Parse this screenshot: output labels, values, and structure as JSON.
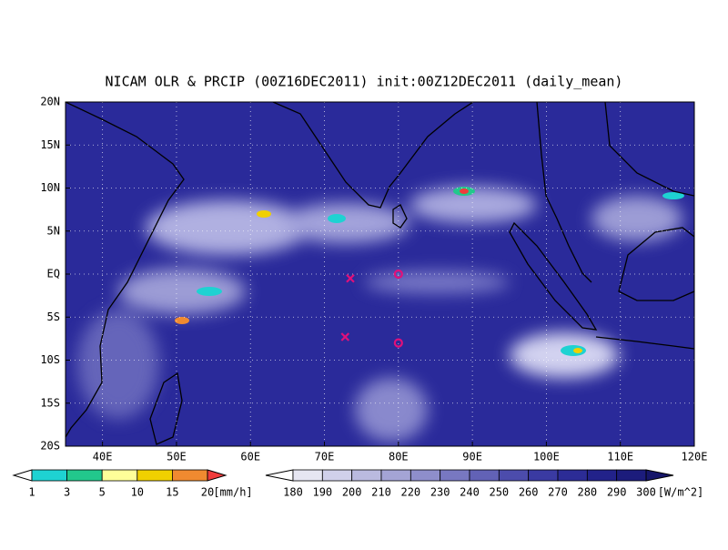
{
  "map": {
    "title": "NICAM OLR & PRCIP (00Z16DEC2011) init:00Z12DEC2011 (daily_mean)",
    "lon_range": [
      35,
      120
    ],
    "lat_range": [
      -20,
      20
    ],
    "lon_ticks": [
      {
        "value": 40,
        "label": "40E"
      },
      {
        "value": 50,
        "label": "50E"
      },
      {
        "value": 60,
        "label": "60E"
      },
      {
        "value": 70,
        "label": "70E"
      },
      {
        "value": 80,
        "label": "80E"
      },
      {
        "value": 90,
        "label": "90E"
      },
      {
        "value": 100,
        "label": "100E"
      },
      {
        "value": 110,
        "label": "110E"
      },
      {
        "value": 120,
        "label": "120E"
      }
    ],
    "lat_ticks": [
      {
        "value": 20,
        "label": "20N"
      },
      {
        "value": 15,
        "label": "15N"
      },
      {
        "value": 10,
        "label": "10N"
      },
      {
        "value": 5,
        "label": "5N"
      },
      {
        "value": 0,
        "label": "EQ"
      },
      {
        "value": -5,
        "label": "5S"
      },
      {
        "value": -10,
        "label": "10S"
      },
      {
        "value": -15,
        "label": "15S"
      },
      {
        "value": -20,
        "label": "20S"
      }
    ],
    "markers": [
      {
        "symbol": "x",
        "lon": 73.5,
        "lat": -0.5,
        "color": "#e0107a"
      },
      {
        "symbol": "x",
        "lon": 72.8,
        "lat": -7.3,
        "color": "#e0107a"
      },
      {
        "symbol": "o",
        "lon": 80,
        "lat": 0,
        "color": "#e0107a"
      },
      {
        "symbol": "o",
        "lon": 80,
        "lat": -8,
        "color": "#e0107a"
      }
    ]
  },
  "precip_legend": {
    "levels": [
      1,
      3,
      5,
      10,
      15,
      20
    ],
    "colors": [
      "#ffffff",
      "#1ed2d2",
      "#22c88c",
      "#ffff99",
      "#f0d000",
      "#f08a30",
      "#f03c3c"
    ],
    "unit": "[mm/h]"
  },
  "olr_legend": {
    "levels": [
      180,
      190,
      200,
      210,
      220,
      230,
      240,
      250,
      260,
      270,
      280,
      290,
      300
    ],
    "colors": [
      "#ffffff",
      "#e6e6f2",
      "#d0d0ea",
      "#babadf",
      "#a4a4d5",
      "#8e8ecb",
      "#7878c1",
      "#6262b6",
      "#4c4cac",
      "#3a3aa2",
      "#2c2c96",
      "#22228a",
      "#1c1c7c",
      "#16166a"
    ],
    "unit": "[W/m^2]"
  }
}
